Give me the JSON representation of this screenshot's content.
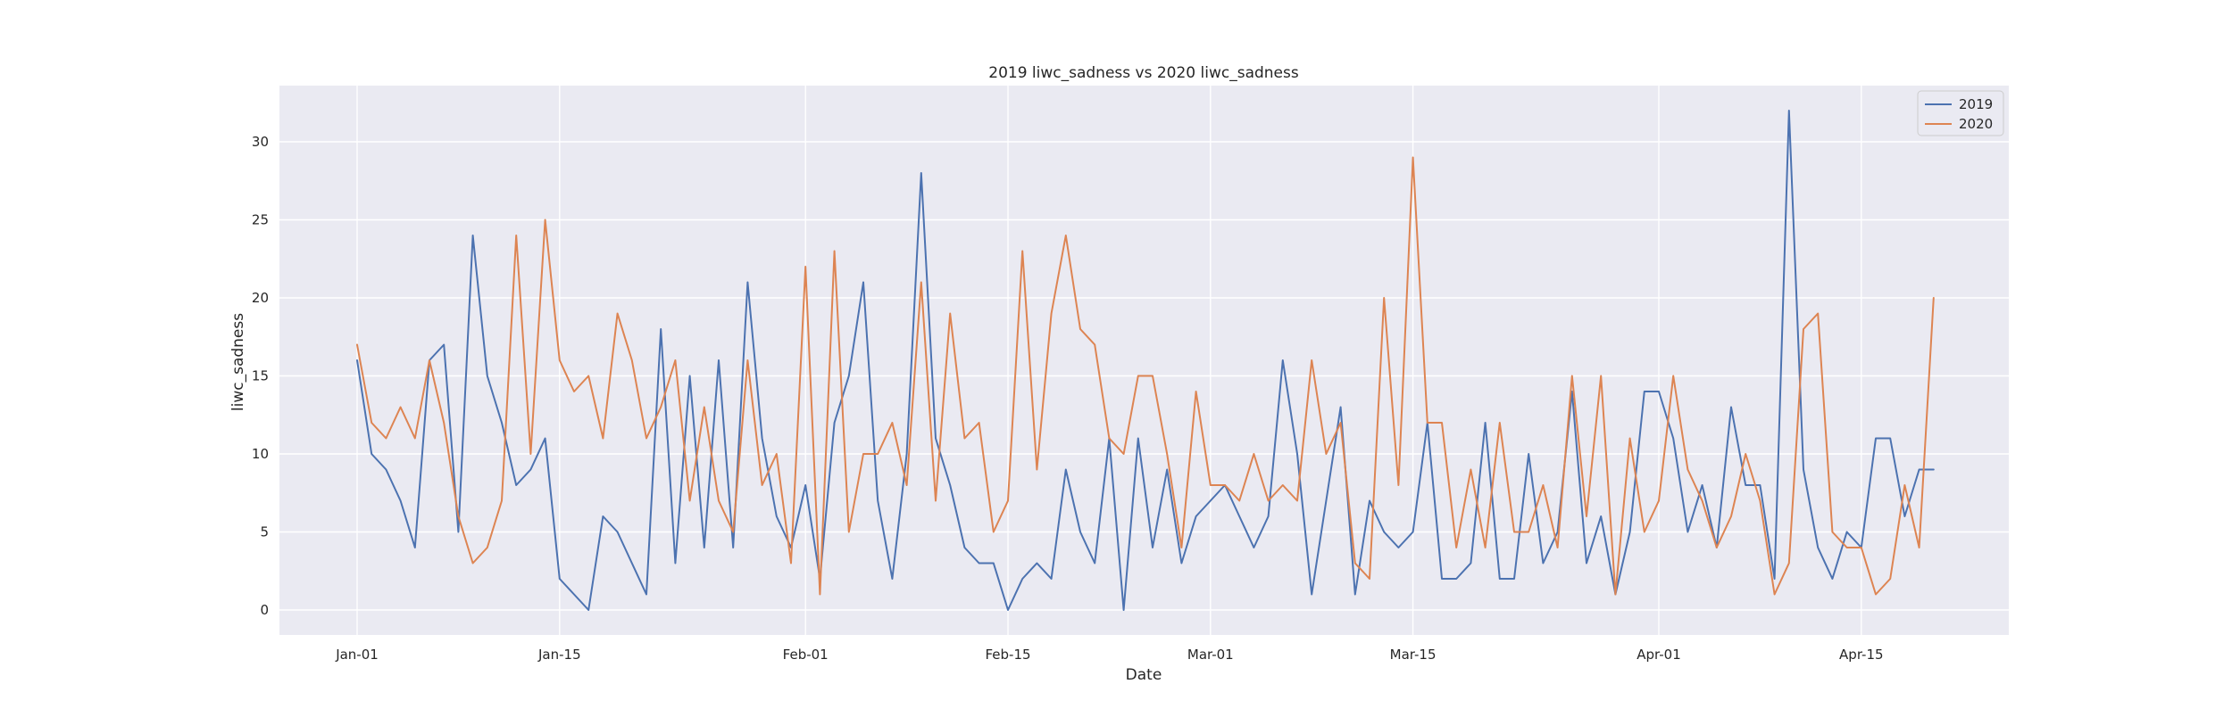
{
  "chart_data": {
    "type": "line",
    "title": "2019 liwc_sadness vs 2020 liwc_sadness",
    "xlabel": "Date",
    "ylabel": "liwc_sadness",
    "x_type": "date",
    "x_start": "01-01",
    "x_ticks": [
      {
        "label": "Jan-01",
        "x": "01-01"
      },
      {
        "label": "Jan-15",
        "x": "01-15"
      },
      {
        "label": "Feb-01",
        "x": "02-01"
      },
      {
        "label": "Feb-15",
        "x": "02-15"
      },
      {
        "label": "Mar-01",
        "x": "03-01"
      },
      {
        "label": "Mar-15",
        "x": "03-15"
      },
      {
        "label": "Apr-01",
        "x": "04-01"
      },
      {
        "label": "Apr-15",
        "x": "04-15"
      }
    ],
    "y_ticks": [
      0,
      5,
      10,
      15,
      20,
      25,
      30
    ],
    "ylim": [
      -1.6,
      33.6
    ],
    "grid": true,
    "legend": "top-right",
    "series": [
      {
        "name": "2019",
        "color": "#4c72b0",
        "values": [
          16,
          10,
          9,
          7,
          4,
          16,
          17,
          5,
          24,
          15,
          12,
          8,
          9,
          11,
          2,
          1,
          0,
          6,
          5,
          3,
          1,
          18,
          3,
          15,
          4,
          16,
          4,
          21,
          11,
          6,
          4,
          8,
          2,
          12,
          15,
          21,
          7,
          2,
          10,
          28,
          11,
          8,
          4,
          3,
          3,
          0,
          2,
          3,
          2,
          9,
          5,
          3,
          11,
          0,
          11,
          4,
          9,
          3,
          6,
          7,
          8,
          6,
          4,
          6,
          16,
          10,
          1,
          7,
          13,
          1,
          7,
          5,
          4,
          5,
          12,
          2,
          2,
          3,
          12,
          2,
          2,
          10,
          3,
          5,
          14,
          3,
          6,
          1,
          5,
          14,
          14,
          11,
          5,
          8,
          4,
          13,
          8,
          8,
          2,
          32,
          9,
          4,
          2,
          5,
          4,
          11,
          11,
          6,
          9,
          9
        ]
      },
      {
        "name": "2020",
        "color": "#dd8452",
        "values": [
          17,
          12,
          11,
          13,
          11,
          16,
          12,
          6,
          3,
          4,
          7,
          24,
          10,
          25,
          16,
          14,
          15,
          11,
          19,
          16,
          11,
          13,
          16,
          7,
          13,
          7,
          5,
          16,
          8,
          10,
          3,
          22,
          1,
          23,
          5,
          10,
          10,
          12,
          8,
          21,
          7,
          19,
          11,
          12,
          5,
          7,
          23,
          9,
          19,
          24,
          18,
          17,
          11,
          10,
          15,
          15,
          10,
          4,
          14,
          8,
          8,
          7,
          10,
          7,
          8,
          7,
          16,
          10,
          12,
          3,
          2,
          20,
          8,
          29,
          12,
          12,
          4,
          9,
          4,
          12,
          5,
          5,
          8,
          4,
          15,
          6,
          15,
          1,
          11,
          5,
          7,
          15,
          9,
          7,
          4,
          6,
          10,
          7,
          1,
          3,
          18,
          19,
          5,
          4,
          4,
          1,
          2,
          8,
          4,
          20
        ]
      }
    ]
  }
}
